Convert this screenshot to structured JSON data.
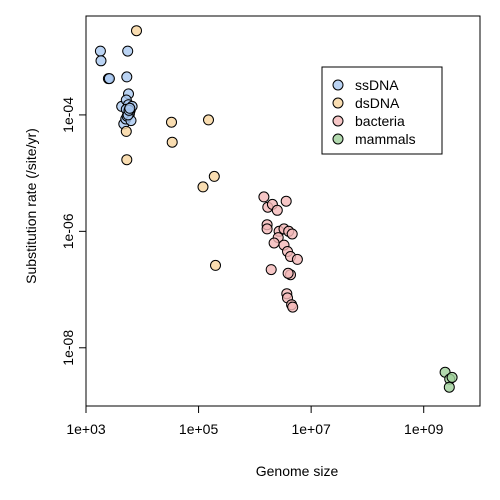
{
  "chart_data": {
    "type": "scatter",
    "xlabel": "Genome size",
    "ylabel": "Substitution rate (/site/yr)",
    "x_scale": "log",
    "y_scale": "log",
    "xlim": [
      1000,
      10000000000
    ],
    "ylim": [
      1e-09,
      0.005
    ],
    "x_ticks": [
      1000,
      100000,
      10000000,
      1000000000
    ],
    "x_tick_labels": [
      "1e+03",
      "1e+05",
      "1e+07",
      "1e+09"
    ],
    "y_ticks": [
      1e-08,
      1e-06,
      0.0001
    ],
    "y_tick_labels": [
      "1e-08",
      "1e-06",
      "1e-04"
    ],
    "grid": false,
    "legend_position": "top-right",
    "series": [
      {
        "name": "ssDNA",
        "color": "#a9c8f0",
        "points": [
          [
            1800,
            0.00125
          ],
          [
            1850,
            0.00085
          ],
          [
            2500,
            0.00042
          ],
          [
            2600,
            0.00042
          ],
          [
            5300,
            0.00045
          ],
          [
            5700,
            0.00023
          ],
          [
            4300,
            0.00014
          ],
          [
            5200,
            0.00018
          ],
          [
            5700,
            0.00015
          ],
          [
            6100,
            0.00012
          ],
          [
            6600,
            0.00014
          ],
          [
            5200,
            0.000125
          ],
          [
            5900,
            0.000105
          ],
          [
            4700,
            7e-05
          ],
          [
            5100,
            8.5e-05
          ],
          [
            5400,
            9.5e-05
          ],
          [
            6300,
            8e-05
          ],
          [
            5600,
            0.0001
          ],
          [
            5800,
            0.00012
          ],
          [
            6000,
            0.00013
          ],
          [
            5500,
            0.00125
          ]
        ]
      },
      {
        "name": "dsDNA",
        "color": "#f8d49e",
        "points": [
          [
            7900,
            0.0028
          ],
          [
            5200,
            5.2e-05
          ],
          [
            5300,
            1.7e-05
          ],
          [
            33000,
            7.5e-05
          ],
          [
            34000,
            3.4e-05
          ],
          [
            150000,
            8.2e-05
          ],
          [
            120000,
            5.8e-06
          ],
          [
            190000,
            8.8e-06
          ],
          [
            200000,
            2.6e-07
          ]
        ]
      },
      {
        "name": "bacteria",
        "color": "#f4b8b8",
        "points": [
          [
            1450000,
            3.9e-06
          ],
          [
            1700000,
            2.6e-06
          ],
          [
            2050000,
            2.9e-06
          ],
          [
            2500000,
            2.3e-06
          ],
          [
            1650000,
            1.3e-06
          ],
          [
            1650000,
            1.1e-06
          ],
          [
            3600000,
            3.3e-06
          ],
          [
            2700000,
            1e-06
          ],
          [
            3300000,
            1.1e-06
          ],
          [
            4000000,
            1e-06
          ],
          [
            4600000,
            9e-07
          ],
          [
            2600000,
            7.8e-07
          ],
          [
            2200000,
            6.3e-07
          ],
          [
            3300000,
            5.8e-07
          ],
          [
            3800000,
            4.5e-07
          ],
          [
            4300000,
            3.7e-07
          ],
          [
            5700000,
            3.3e-07
          ],
          [
            1950000,
            2.2e-07
          ],
          [
            4300000,
            1.8e-07
          ],
          [
            3900000,
            1.9e-07
          ],
          [
            3700000,
            8.5e-08
          ],
          [
            3800000,
            7.2e-08
          ],
          [
            4500000,
            5.5e-08
          ],
          [
            4700000,
            5e-08
          ]
        ]
      },
      {
        "name": "mammals",
        "color": "#9fcf9a",
        "points": [
          [
            2400000000,
            3.8e-09
          ],
          [
            2900000000,
            2.9e-09
          ],
          [
            3200000000,
            3.1e-09
          ],
          [
            2850000000,
            2.1e-09
          ]
        ]
      }
    ]
  }
}
